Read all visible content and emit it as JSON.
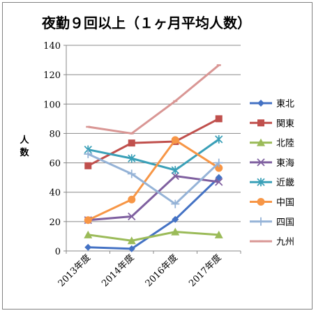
{
  "chart_data": {
    "type": "line",
    "title": "夜勤９回以上（１ヶ月平均人数）",
    "ylabel": "人数",
    "ylim": [
      0,
      140
    ],
    "yticks": [
      0,
      20,
      40,
      60,
      80,
      100,
      120,
      140
    ],
    "grid": true,
    "legend": "right",
    "categories": [
      "2013年度",
      "2014年度",
      "2016年度",
      "2017年度"
    ],
    "series": [
      {
        "name": "東北",
        "color": "#4472C4",
        "marker": "diamond",
        "values": [
          2.5,
          1.5,
          21.5,
          50
        ]
      },
      {
        "name": "関東",
        "color": "#C0504D",
        "marker": "square",
        "values": [
          58,
          73.5,
          74.5,
          90
        ]
      },
      {
        "name": "北陸",
        "color": "#9BBB59",
        "marker": "triangle",
        "values": [
          11,
          7,
          13,
          11
        ]
      },
      {
        "name": "東海",
        "color": "#7F60A0",
        "marker": "x",
        "values": [
          21,
          23.5,
          51,
          47
        ]
      },
      {
        "name": "近畿",
        "color": "#3AA0B8",
        "marker": "star",
        "values": [
          69,
          63,
          55,
          76
        ]
      },
      {
        "name": "中国",
        "color": "#F79646",
        "marker": "circle",
        "values": [
          21,
          35,
          75.5,
          56.5
        ]
      },
      {
        "name": "四国",
        "color": "#95B3D7",
        "marker": "plus",
        "values": [
          66,
          52.5,
          32,
          60
        ]
      },
      {
        "name": "九州",
        "color": "#D99694",
        "marker": "dash",
        "values": [
          84.5,
          80,
          102,
          126.5
        ]
      }
    ]
  }
}
